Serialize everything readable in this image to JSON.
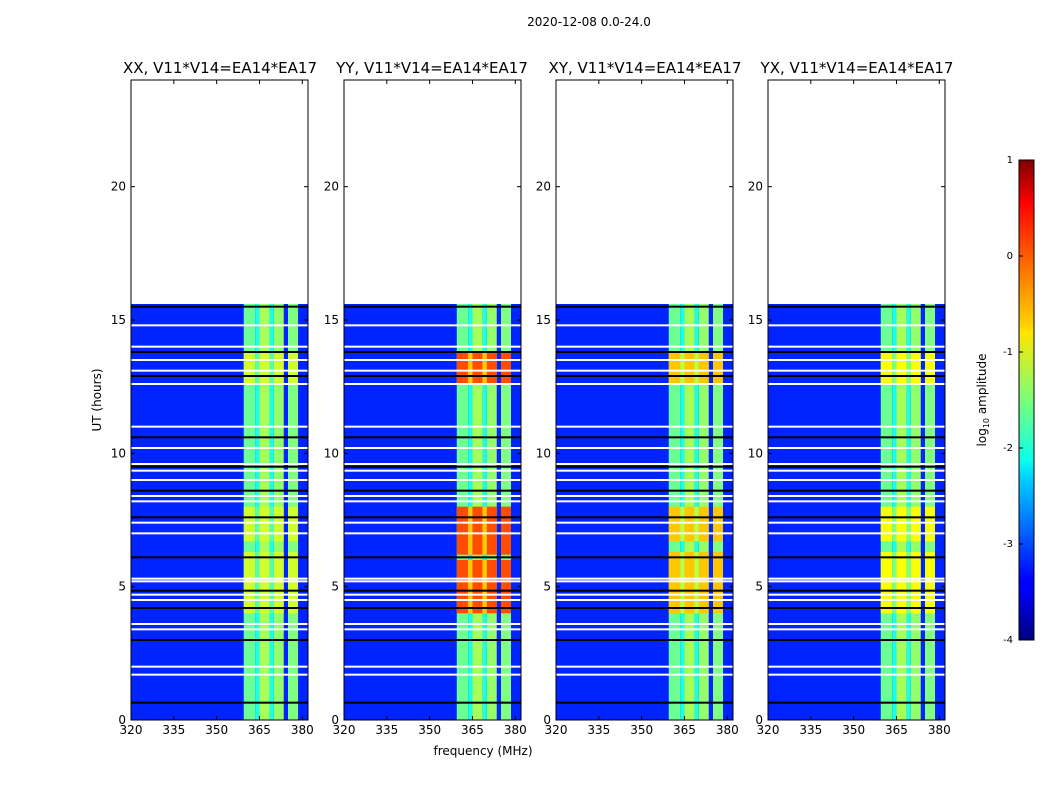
{
  "figure": {
    "suptitle": "2020-12-08 0.0-24.0",
    "xlabel": "frequency (MHz)",
    "ylabel": "UT (hours)",
    "colorbar_label_prefix": "log",
    "colorbar_label_sub": "10",
    "colorbar_label_suffix": " amplitude"
  },
  "chart_data": {
    "type": "heatmap",
    "title": "2020-12-08 0.0-24.0",
    "xlabel": "frequency (MHz)",
    "ylabel": "UT (hours)",
    "xlim": [
      320,
      382
    ],
    "ylim": [
      0,
      24
    ],
    "xticks": [
      320,
      335,
      350,
      365,
      380
    ],
    "yticks": [
      0,
      5,
      10,
      15,
      20
    ],
    "colorbar": {
      "label": "log10 amplitude",
      "range": [
        -4,
        1
      ],
      "ticks": [
        1,
        0,
        -1,
        -2,
        -3,
        -4
      ],
      "colormap": "jet"
    },
    "data_time_range_hours": [
      0,
      15.6
    ],
    "noise_level_log10": -3.2,
    "rfi_bands_mhz": [
      {
        "range": [
          359.5,
          363.5
        ],
        "level": -1.6
      },
      {
        "range": [
          365,
          368.5
        ],
        "level": -1.3
      },
      {
        "range": [
          370,
          373.5
        ],
        "level": -1.4
      },
      {
        "range": [
          375,
          378.5
        ],
        "level": -1.5
      },
      {
        "range": [
          363.5,
          365
        ],
        "level": -2.0
      },
      {
        "range": [
          368.5,
          370
        ],
        "level": -2.0
      }
    ],
    "flagged_rows_hours": [
      0.65,
      1.7,
      2.0,
      3.0,
      3.4,
      3.6,
      4.2,
      4.5,
      4.7,
      4.85,
      5.2,
      5.3,
      6.1,
      7.0,
      7.4,
      7.6,
      8.2,
      8.4,
      8.6,
      9.0,
      9.35,
      9.5,
      9.6,
      10.2,
      10.6,
      11.0,
      12.6,
      12.9,
      13.1,
      13.5,
      13.8,
      14.0,
      14.8,
      15.5
    ],
    "panels": [
      {
        "name": "XX",
        "title": "XX, V11*V14=EA14*EA17",
        "bright_hours": [
          [
            4.0,
            6.3
          ],
          [
            6.7,
            8.0
          ],
          [
            12.6,
            13.8
          ]
        ],
        "bright_level": -1.1
      },
      {
        "name": "YY",
        "title": "YY, V11*V14=EA14*EA17",
        "bright_hours": [
          [
            4.0,
            6.0
          ],
          [
            6.2,
            8.0
          ],
          [
            12.6,
            13.8
          ]
        ],
        "bright_level": 0.0
      },
      {
        "name": "XY",
        "title": "XY, V11*V14=EA14*EA17",
        "bright_hours": [
          [
            4.0,
            6.3
          ],
          [
            6.7,
            8.0
          ],
          [
            12.6,
            13.8
          ]
        ],
        "bright_level": -0.6
      },
      {
        "name": "YX",
        "title": "YX, V11*V14=EA14*EA17",
        "bright_hours": [
          [
            4.0,
            6.3
          ],
          [
            6.7,
            8.0
          ],
          [
            12.6,
            13.8
          ]
        ],
        "bright_level": -0.9
      }
    ]
  }
}
